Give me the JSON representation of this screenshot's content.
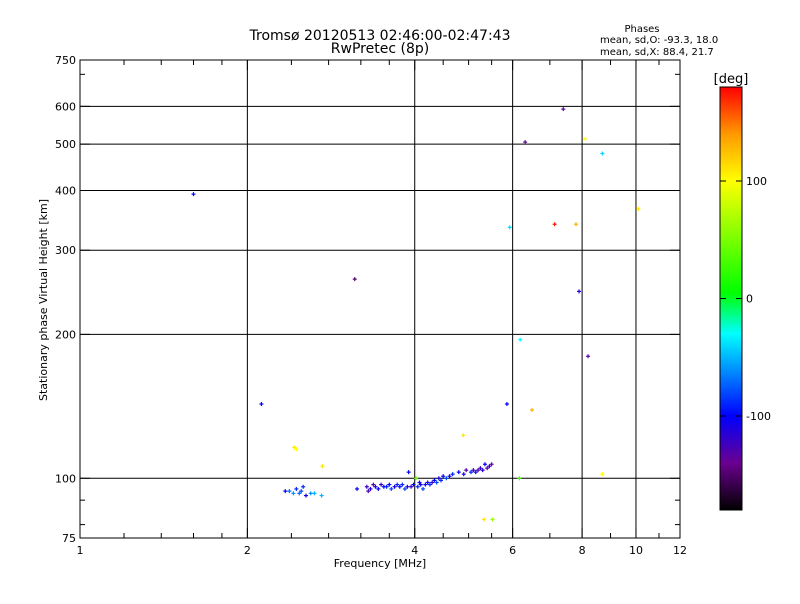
{
  "chart_data": {
    "type": "scatter",
    "title": "Tromsø 20120513 02:46:00-02:47:43",
    "subtitle": "RwPretec (8p)",
    "xlabel": "Frequency [MHz]",
    "ylabel": "Stationary phase Virtual Height [km]",
    "xscale": "log",
    "yscale": "log",
    "xlim": [
      1,
      12
    ],
    "ylim": [
      75,
      750
    ],
    "xticks": [
      1,
      2,
      4,
      6,
      8,
      10,
      12
    ],
    "yticks": [
      75,
      100,
      200,
      300,
      400,
      500,
      600,
      750
    ],
    "x_minor_ticks": [
      1.2,
      1.4,
      1.6,
      1.8,
      2.4,
      2.8,
      3.2,
      3.6,
      4.5,
      5,
      5.5,
      7,
      9,
      11
    ],
    "y_minor_ticks": [
      80,
      90,
      700
    ],
    "xgrid": [
      2,
      4,
      6,
      8,
      10
    ],
    "ygrid": [
      100,
      200,
      300,
      400,
      500,
      600
    ],
    "phases_box": {
      "title": "Phases",
      "line_o": "mean, sd,O:  -93.3, 18.0",
      "line_x": "mean, sd,X:  88.4, 21.7"
    },
    "colorbar": {
      "label": "[deg]",
      "range": [
        -180,
        180
      ],
      "ticks": [
        100,
        0,
        -100
      ],
      "colormap": [
        {
          "v": -180,
          "c": "#000000"
        },
        {
          "v": -140,
          "c": "#6a0090"
        },
        {
          "v": -100,
          "c": "#0000ff"
        },
        {
          "v": -30,
          "c": "#00ffff"
        },
        {
          "v": 5,
          "c": "#00ff00"
        },
        {
          "v": 100,
          "c": "#ffff00"
        },
        {
          "v": 140,
          "c": "#ff9900"
        },
        {
          "v": 180,
          "c": "#ff0000"
        }
      ]
    },
    "points_columns": [
      "frequency_mhz",
      "height_km",
      "phase_deg"
    ],
    "points": [
      [
        1.6,
        393,
        -100
      ],
      [
        3.12,
        261,
        -150
      ],
      [
        2.12,
        143,
        -100
      ],
      [
        2.43,
        116,
        110
      ],
      [
        2.45,
        115,
        100
      ],
      [
        2.73,
        106,
        110
      ],
      [
        4.89,
        123,
        110
      ],
      [
        5.33,
        82,
        110
      ],
      [
        5.52,
        82,
        60
      ],
      [
        5.93,
        335,
        -40
      ],
      [
        6.32,
        505,
        -135
      ],
      [
        6.19,
        195,
        -30
      ],
      [
        5.86,
        143,
        -100
      ],
      [
        6.5,
        139,
        130
      ],
      [
        7.14,
        340,
        175
      ],
      [
        7.8,
        340,
        130
      ],
      [
        7.4,
        592,
        -135
      ],
      [
        8.1,
        513,
        100
      ],
      [
        8.7,
        478,
        -40
      ],
      [
        7.9,
        246,
        -110
      ],
      [
        8.2,
        180,
        -135
      ],
      [
        10.1,
        366,
        110
      ],
      [
        8.7,
        102,
        100
      ],
      [
        6.17,
        100,
        30
      ],
      [
        2.34,
        94,
        -100
      ],
      [
        2.38,
        94,
        -70
      ],
      [
        2.42,
        93,
        -60
      ],
      [
        2.45,
        95,
        -90
      ],
      [
        2.48,
        93,
        -70
      ],
      [
        2.5,
        94,
        -80
      ],
      [
        2.52,
        96,
        -90
      ],
      [
        2.55,
        92,
        -110
      ],
      [
        2.6,
        93,
        -60
      ],
      [
        2.64,
        93,
        -50
      ],
      [
        2.72,
        92,
        -50
      ],
      [
        3.15,
        95,
        -100
      ],
      [
        3.28,
        96,
        -120
      ],
      [
        3.3,
        94,
        -130
      ],
      [
        3.33,
        95,
        -110
      ],
      [
        3.37,
        97,
        -130
      ],
      [
        3.4,
        96,
        -110
      ],
      [
        3.44,
        95,
        -100
      ],
      [
        3.48,
        97,
        -120
      ],
      [
        3.52,
        96,
        -100
      ],
      [
        3.56,
        96,
        -90
      ],
      [
        3.6,
        97,
        -100
      ],
      [
        3.63,
        95,
        -80
      ],
      [
        3.68,
        96,
        -110
      ],
      [
        3.72,
        97,
        -90
      ],
      [
        3.76,
        96,
        -100
      ],
      [
        3.8,
        97,
        -90
      ],
      [
        3.84,
        95,
        -80
      ],
      [
        3.88,
        96,
        -110
      ],
      [
        3.9,
        103,
        -100
      ],
      [
        3.94,
        96,
        -120
      ],
      [
        3.98,
        97,
        -100
      ],
      [
        4.02,
        100,
        40
      ],
      [
        4.05,
        96,
        -90
      ],
      [
        4.08,
        98,
        -110
      ],
      [
        4.1,
        97,
        -100
      ],
      [
        4.14,
        95,
        -80
      ],
      [
        4.18,
        97,
        -110
      ],
      [
        4.22,
        98,
        -100
      ],
      [
        4.26,
        97,
        -90
      ],
      [
        4.3,
        98,
        -120
      ],
      [
        4.34,
        99,
        -100
      ],
      [
        4.38,
        98,
        -80
      ],
      [
        4.42,
        100,
        -110
      ],
      [
        4.46,
        99,
        -90
      ],
      [
        4.5,
        101,
        -100
      ],
      [
        4.56,
        100,
        -80
      ],
      [
        4.62,
        101,
        -110
      ],
      [
        4.68,
        102,
        -90
      ],
      [
        4.8,
        103,
        -100
      ],
      [
        4.9,
        102,
        -110
      ],
      [
        4.95,
        104,
        -130
      ],
      [
        5.05,
        103,
        -90
      ],
      [
        5.1,
        104,
        -120
      ],
      [
        5.15,
        103,
        -110
      ],
      [
        5.2,
        104,
        -130
      ],
      [
        5.25,
        105,
        -120
      ],
      [
        5.3,
        104,
        -110
      ],
      [
        5.35,
        107,
        -100
      ],
      [
        5.4,
        105,
        -130
      ],
      [
        5.45,
        106,
        -120
      ],
      [
        5.5,
        107,
        -140
      ]
    ]
  }
}
